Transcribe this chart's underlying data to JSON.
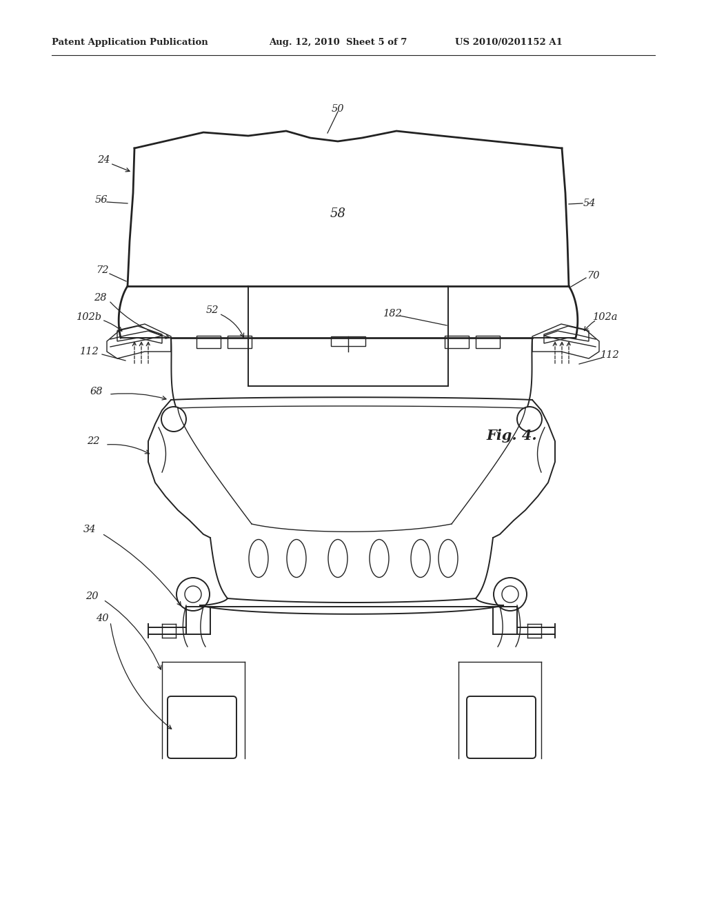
{
  "bg_color": "#ffffff",
  "line_color": "#222222",
  "header_left": "Patent Application Publication",
  "header_mid": "Aug. 12, 2010  Sheet 5 of 7",
  "header_right": "US 2010/0201152 A1",
  "fig_label": "Fig. 4."
}
